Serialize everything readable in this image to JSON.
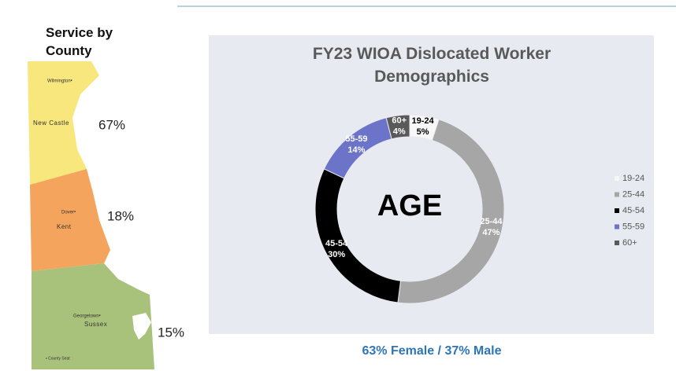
{
  "map": {
    "title": "Service by County",
    "counties": [
      {
        "name": "New Castle",
        "seat": "Wilmington•",
        "share": "67%"
      },
      {
        "name": "Kent",
        "seat": "Dover•",
        "share": "18%"
      },
      {
        "name": "Sussex",
        "seat": "Georgetown•",
        "share": "15%"
      }
    ],
    "legend": "• County Seat"
  },
  "chart_data": {
    "type": "donut",
    "title": "FY23 WIOA Dislocated Worker Demographics",
    "center_label": "AGE",
    "categories": [
      "19-24",
      "25-44",
      "45-54",
      "55-59",
      "60+"
    ],
    "values": [
      5,
      47,
      30,
      14,
      4
    ],
    "value_labels": [
      "5%",
      "47%",
      "30%",
      "14%",
      "4%"
    ],
    "colors": [
      "#f7f7f7",
      "#a6a6a6",
      "#000000",
      "#6b74c8",
      "#595959"
    ],
    "legend": "right"
  },
  "footer": "63% Female / 37% Male"
}
